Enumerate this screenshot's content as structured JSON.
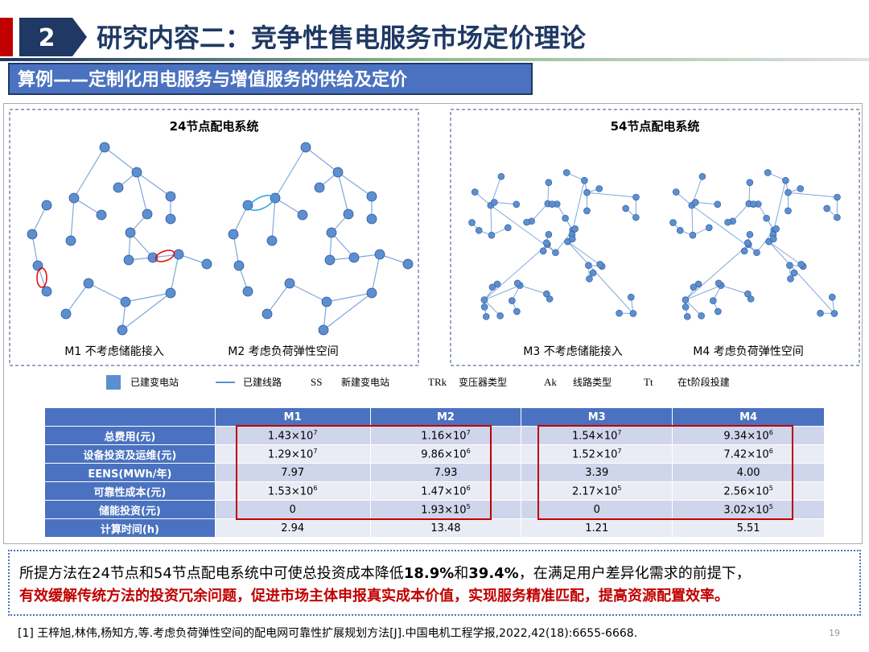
{
  "header": {
    "number": "2",
    "title": "研究内容二：竞争性售电服务市场定价理论"
  },
  "subtitle": "算例——定制化用电服务与增值服务的供给及定价",
  "diagrams": [
    {
      "title": "24节点配电系统",
      "captions": [
        "M1 不考虑储能接入",
        "M2 考虑负荷弹性空间"
      ]
    },
    {
      "title": "54节点配电系统",
      "captions": [
        "M3 不考虑储能接入",
        "M4 考虑负荷弹性空间"
      ]
    }
  ],
  "legend": [
    {
      "label": "已建变电站"
    },
    {
      "label": "已建线路"
    },
    {
      "symbol": "SS",
      "label": "新建变电站"
    },
    {
      "symbol": "TRk",
      "label": "变压器类型"
    },
    {
      "symbol": "Ak",
      "label": "线路类型"
    },
    {
      "symbol": "Tt",
      "label": "在t阶段投建"
    }
  ],
  "table": {
    "header": [
      "",
      "M1",
      "M2",
      "M3",
      "M4"
    ],
    "rows": [
      [
        "总费用(元)",
        {
          "base": "1.43×10",
          "exp": "7"
        },
        {
          "base": "1.16×10",
          "exp": "7"
        },
        {
          "base": "1.54×10",
          "exp": "7"
        },
        {
          "base": "9.34×10",
          "exp": "6"
        }
      ],
      [
        "设备投资及运维(元)",
        {
          "base": "1.29×10",
          "exp": "7"
        },
        {
          "base": "9.86×10",
          "exp": "6"
        },
        {
          "base": "1.52×10",
          "exp": "7"
        },
        {
          "base": "7.42×10",
          "exp": "6"
        }
      ],
      [
        "EENS(MWh/年)",
        "7.97",
        "7.93",
        "3.39",
        "4.00"
      ],
      [
        "可靠性成本(元)",
        {
          "base": "1.53×10",
          "exp": "6"
        },
        {
          "base": "1.47×10",
          "exp": "6"
        },
        {
          "base": "2.17×10",
          "exp": "5"
        },
        {
          "base": "2.56×10",
          "exp": "5"
        }
      ],
      [
        "储能投资(元)",
        "0",
        {
          "base": "1.93×10",
          "exp": "5"
        },
        "0",
        {
          "base": "3.02×10",
          "exp": "5"
        }
      ],
      [
        "计算时间(h)",
        "2.94",
        "13.48",
        "1.21",
        "5.51"
      ]
    ]
  },
  "summary": {
    "line1": [
      "所提方法在24节点和54节点配电系统中可使总投资成本降低",
      "18.9%",
      "和",
      "39.4%",
      "，在满足用户差异化需求的前提下，"
    ],
    "line2": "有效缓解传统方法的投资冗余问题，促进市场主体申报真实成本价值，实现服务精准匹配，提高资源配置效率。"
  },
  "reference": "[1]  王梓旭,林伟,杨知方,等.考虑负荷弹性空间的配电网可靠性扩展规划方法[J].中国电机工程学报,2022,42(18):6655-6668.",
  "page_number": "19"
}
